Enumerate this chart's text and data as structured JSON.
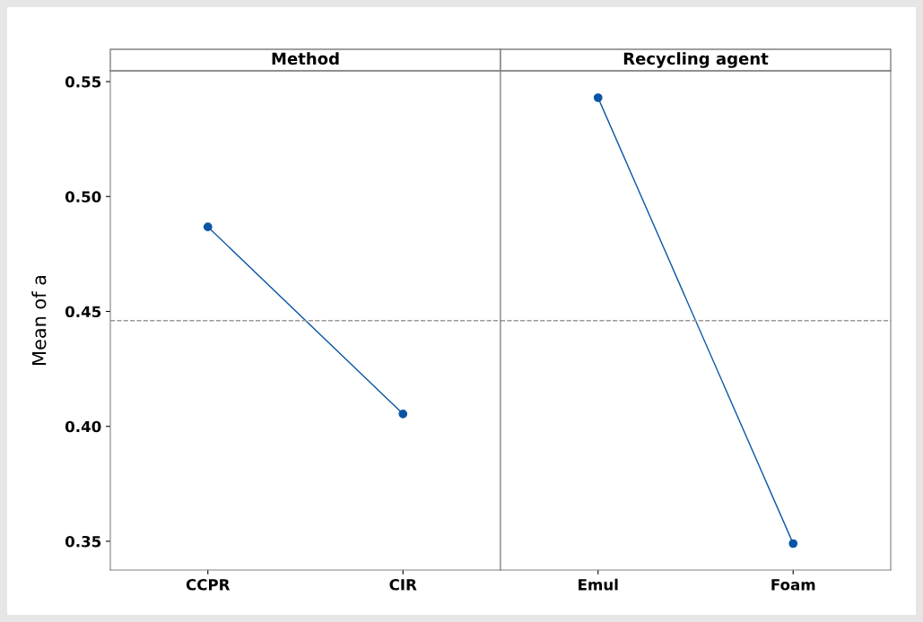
{
  "chart_data": [
    {
      "type": "line",
      "title": "Method",
      "ylabel": "Mean of a",
      "categories": [
        "CCPR",
        "CIR"
      ],
      "series": [
        {
          "color": "#0a55a5",
          "values": [
            0.4868,
            0.4054
          ]
        }
      ],
      "ylim": [
        0.3375,
        0.5547
      ],
      "yticks": [
        0.35,
        {
          "value": 0.4,
          "label": "0.40"
        },
        0.45,
        {
          "value": 0.5,
          "label": "0.50"
        },
        0.55
      ],
      "marker": "circle",
      "line_style": "solid",
      "grid": false,
      "legend": false,
      "ref_lines": [
        {
          "axis": "y",
          "value": 0.446,
          "color": "#999999",
          "line_style": "dashed"
        }
      ]
    },
    {
      "type": "line",
      "title": "Recycling agent",
      "categories": [
        "Emul",
        "Foam"
      ],
      "series": [
        {
          "color": "#0a55a5",
          "values": [
            0.543,
            0.349
          ]
        }
      ],
      "ylim": [
        0.3375,
        0.5547
      ],
      "tick_labels": "x",
      "marker": "circle",
      "line_style": "solid",
      "grid": false,
      "legend": false,
      "ref_lines": [
        {
          "axis": "y",
          "value": 0.446,
          "color": "#999999",
          "line_style": "dashed"
        }
      ]
    }
  ]
}
